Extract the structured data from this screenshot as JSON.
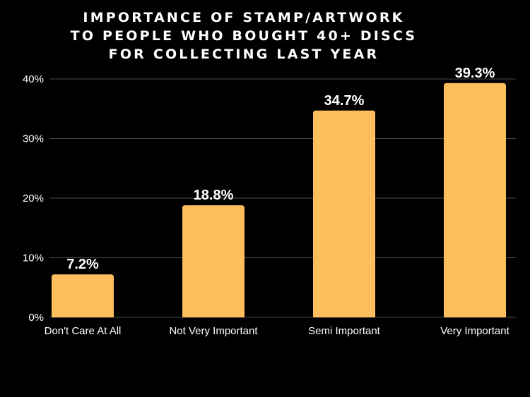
{
  "chart_data": {
    "type": "bar",
    "title_lines": [
      "IMPORTANCE OF STAMP/ARTWORK",
      "TO PEOPLE WHO BOUGHT 40+ DISCS",
      "FOR COLLECTING LAST YEAR"
    ],
    "categories": [
      "Don't Care At All",
      "Not Very Important",
      "Semi Important",
      "Very Important"
    ],
    "values": [
      7.2,
      18.8,
      34.7,
      39.3
    ],
    "data_labels": [
      "7.2%",
      "18.8%",
      "34.7%",
      "39.3%"
    ],
    "y_ticks": [
      "0%",
      "10%",
      "20%",
      "30%",
      "40%"
    ],
    "ylim": [
      0,
      40
    ],
    "xlabel": "",
    "ylabel": "",
    "grid": true,
    "colors": {
      "background": "#000000",
      "bar": "#ffbe5c",
      "grid": "#4a4a4a",
      "text": "#ffffff"
    }
  }
}
